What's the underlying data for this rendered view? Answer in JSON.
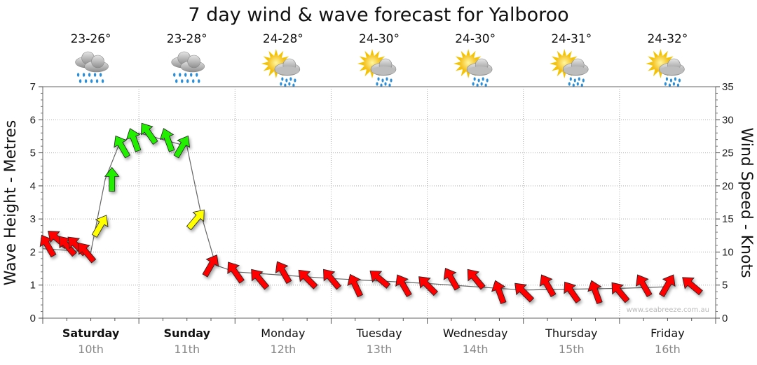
{
  "chart_data": {
    "type": "line",
    "title": "7 day wind & wave forecast for Yalboroo",
    "ylabel_left": "Wave Height - Metres",
    "ylabel_right": "Wind Speed - Knots",
    "ylim_left": [
      0,
      7
    ],
    "ylim_right": [
      0,
      35
    ],
    "yticks_left": [
      "0",
      "1",
      "2",
      "3",
      "4",
      "5",
      "6",
      "7"
    ],
    "yticks_right": [
      "0",
      "5",
      "10",
      "15",
      "20",
      "25",
      "30",
      "35"
    ],
    "grid": true,
    "credit": "www.seabreeze.com.au",
    "days": [
      {
        "name": "Saturday",
        "date": "10th",
        "temp": "23-26°",
        "icon": "rain-icon",
        "bold": true
      },
      {
        "name": "Sunday",
        "date": "11th",
        "temp": "23-28°",
        "icon": "rain-icon",
        "bold": true
      },
      {
        "name": "Monday",
        "date": "12th",
        "temp": "24-28°",
        "icon": "sun-rain-icon",
        "bold": false
      },
      {
        "name": "Tuesday",
        "date": "13th",
        "temp": "24-30°",
        "icon": "sun-rain-icon",
        "bold": false
      },
      {
        "name": "Wednesday",
        "date": "14th",
        "temp": "24-30°",
        "icon": "sun-rain-icon",
        "bold": false
      },
      {
        "name": "Thursday",
        "date": "15th",
        "temp": "24-31°",
        "icon": "sun-rain-icon",
        "bold": false
      },
      {
        "name": "Friday",
        "date": "16th",
        "temp": "24-32°",
        "icon": "sun-rain-icon",
        "bold": false
      }
    ],
    "wave_series": {
      "name": "Wave Height",
      "x_day": [
        0.0,
        0.5,
        0.65,
        0.8,
        1.0,
        1.5,
        1.65,
        1.8,
        2.0,
        3.0,
        4.0,
        5.0,
        6.0,
        6.5
      ],
      "values": [
        2.1,
        2.0,
        4.2,
        5.3,
        5.6,
        5.2,
        3.1,
        1.6,
        1.4,
        1.2,
        1.05,
        0.85,
        0.9,
        0.95
      ]
    },
    "wind_arrows": [
      {
        "t": 0.05,
        "knots": 11,
        "dir": 240
      },
      {
        "t": 0.15,
        "knots": 12,
        "dir": 220
      },
      {
        "t": 0.25,
        "knots": 11,
        "dir": 230
      },
      {
        "t": 0.35,
        "knots": 11,
        "dir": 225
      },
      {
        "t": 0.45,
        "knots": 10,
        "dir": 230
      },
      {
        "t": 0.6,
        "knots": 14,
        "dir": 300
      },
      {
        "t": 0.72,
        "knots": 21,
        "dir": 270
      },
      {
        "t": 0.82,
        "knots": 26,
        "dir": 240
      },
      {
        "t": 0.95,
        "knots": 27,
        "dir": 250
      },
      {
        "t": 1.1,
        "knots": 28,
        "dir": 235
      },
      {
        "t": 1.3,
        "knots": 27,
        "dir": 250
      },
      {
        "t": 1.45,
        "knots": 26,
        "dir": 300
      },
      {
        "t": 1.6,
        "knots": 15,
        "dir": 310
      },
      {
        "t": 1.75,
        "knots": 8,
        "dir": 300
      },
      {
        "t": 2.0,
        "knots": 7,
        "dir": 235
      },
      {
        "t": 2.25,
        "knots": 6,
        "dir": 230
      },
      {
        "t": 2.5,
        "knots": 7,
        "dir": 240
      },
      {
        "t": 2.75,
        "knots": 6,
        "dir": 225
      },
      {
        "t": 3.0,
        "knots": 6,
        "dir": 230
      },
      {
        "t": 3.25,
        "knots": 5,
        "dir": 245
      },
      {
        "t": 3.5,
        "knots": 6,
        "dir": 220
      },
      {
        "t": 3.75,
        "knots": 5,
        "dir": 240
      },
      {
        "t": 4.0,
        "knots": 5,
        "dir": 225
      },
      {
        "t": 4.25,
        "knots": 6,
        "dir": 240
      },
      {
        "t": 4.5,
        "knots": 6,
        "dir": 230
      },
      {
        "t": 4.75,
        "knots": 4,
        "dir": 250
      },
      {
        "t": 5.0,
        "knots": 4,
        "dir": 225
      },
      {
        "t": 5.25,
        "knots": 5,
        "dir": 240
      },
      {
        "t": 5.5,
        "knots": 4,
        "dir": 235
      },
      {
        "t": 5.75,
        "knots": 4,
        "dir": 250
      },
      {
        "t": 6.0,
        "knots": 4,
        "dir": 230
      },
      {
        "t": 6.25,
        "knots": 5,
        "dir": 240
      },
      {
        "t": 6.5,
        "knots": 5,
        "dir": 300
      },
      {
        "t": 6.75,
        "knots": 5,
        "dir": 220
      }
    ],
    "wind_colors": {
      "red": "#ff0000",
      "yellow": "#ffff00",
      "green": "#22ee00"
    }
  }
}
